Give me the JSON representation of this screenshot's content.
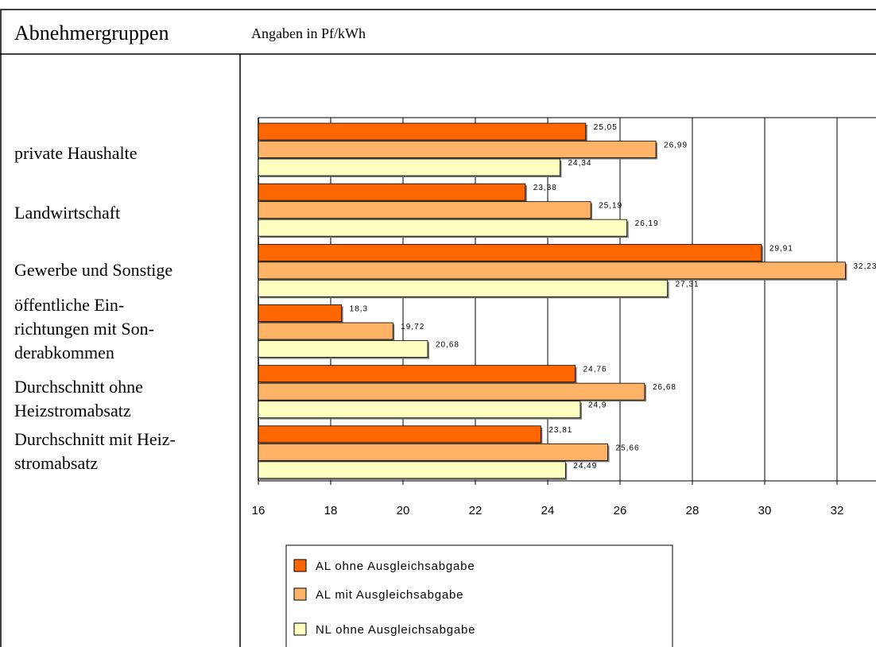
{
  "header": {
    "title": "Abnehmergruppen",
    "subtitle": "Angaben in Pf/kWh"
  },
  "chart_data": {
    "type": "hbar",
    "categories": [
      "private Haushalte",
      "Landwirtschaft",
      "Gewerbe und Sonstige",
      "öffentliche Ein-\nrichtungen mit Son-\nderabkommen",
      "Durchschnitt ohne\nHeizstromabsatz",
      "Durchschnitt mit Heiz-\nstromabsatz"
    ],
    "series": [
      {
        "name": "AL ohne Ausgleichsabgabe",
        "color": "#ff6600",
        "values": [
          25.05,
          23.38,
          29.91,
          18.3,
          24.76,
          23.81
        ],
        "value_labels": [
          "25,05",
          "23,38",
          "29,91",
          "18,3",
          "24,76",
          "23,81"
        ]
      },
      {
        "name": "AL mit Ausgleichsabgabe",
        "color": "#ffb366",
        "values": [
          26.99,
          25.19,
          32.23,
          19.72,
          26.68,
          25.66
        ],
        "value_labels": [
          "26,99",
          "25,19",
          "32,23",
          "19,72",
          "26,68",
          "25,66"
        ]
      },
      {
        "name": "NL ohne Ausgleichsabgabe",
        "color": "#ffffc0",
        "values": [
          24.34,
          26.19,
          27.31,
          20.68,
          24.9,
          24.49
        ],
        "value_labels": [
          "24,34",
          "26,19",
          "27,31",
          "20,68",
          "24,9",
          "24,49"
        ]
      }
    ],
    "xlim": [
      16,
      34
    ],
    "xticks": [
      16,
      18,
      20,
      22,
      24,
      26,
      28,
      30,
      32
    ],
    "grid": true
  }
}
